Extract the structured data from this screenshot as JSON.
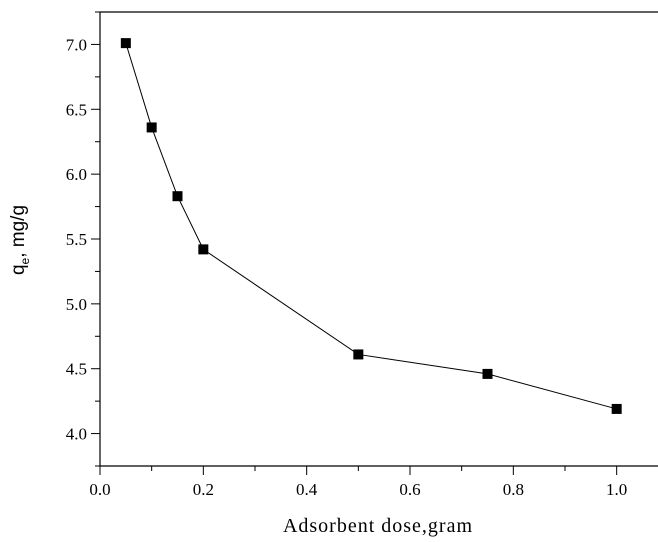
{
  "chart_data": {
    "type": "line",
    "title": "",
    "xlabel": "Adsorbent dose,gram",
    "ylabel": {
      "main": "q",
      "subscript": "e",
      "rest": ", mg/g"
    },
    "xlim": [
      0.0,
      1.08
    ],
    "ylim": [
      3.75,
      7.25
    ],
    "x_ticks": [
      "0.0",
      "0.2",
      "0.4",
      "0.6",
      "0.8",
      "1.0"
    ],
    "x_tick_values": [
      0.0,
      0.2,
      0.4,
      0.6,
      0.8,
      1.0
    ],
    "y_ticks": [
      "4.0",
      "4.5",
      "5.0",
      "5.5",
      "6.0",
      "6.5",
      "7.0"
    ],
    "y_tick_values": [
      4.0,
      4.5,
      5.0,
      5.5,
      6.0,
      6.5,
      7.0
    ],
    "grid": false,
    "marker": "square",
    "line_color": "#000000",
    "series": [
      {
        "x": [
          0.05,
          0.1,
          0.15,
          0.2,
          0.5,
          0.75,
          1.0
        ],
        "y": [
          7.01,
          6.36,
          5.83,
          5.42,
          4.61,
          4.46,
          4.19
        ]
      }
    ]
  }
}
